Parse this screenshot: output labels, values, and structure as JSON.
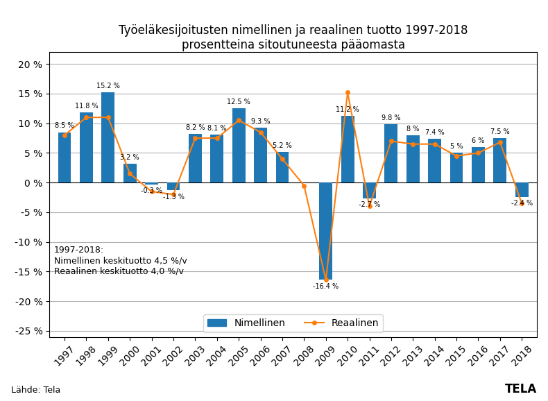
{
  "chart_data": {
    "type": "bar",
    "title": "Työeläkesijoitusten nimellinen ja reaalinen tuotto 1997-2018\nprosentteina sitoutuneesta pääomasta",
    "categories": [
      "1997",
      "1998",
      "1999",
      "2000",
      "2001",
      "2002",
      "2003",
      "2004",
      "2005",
      "2006",
      "2007",
      "2008",
      "2009",
      "2010",
      "2011",
      "2012",
      "2013",
      "2014",
      "2015",
      "2016",
      "2017",
      "2018"
    ],
    "series": [
      {
        "name": "Nimellinen",
        "type": "bar",
        "values": [
          8.5,
          11.8,
          15.2,
          3.2,
          -0.3,
          -1.3,
          8.2,
          8.1,
          12.5,
          9.3,
          5.2,
          0.0,
          -16.4,
          11.2,
          -2.7,
          9.8,
          8.0,
          7.4,
          5.0,
          6.0,
          7.5,
          -2.4
        ],
        "value_labels": [
          "8.5 %",
          "11.8 %",
          "15.2 %",
          "3.2 %",
          "-0.3 %",
          "-1.3 %",
          "8.2 %",
          "8.1 %",
          "12.5 %",
          "9.3 %",
          "5.2 %",
          null,
          "-16.4 %",
          "11.2 %",
          "-2.7 %",
          "9.8 %",
          "8 %",
          "7.4 %",
          "5 %",
          "6 %",
          "7.5 %",
          "-2.4 %"
        ]
      },
      {
        "name": "Reaalinen",
        "type": "line",
        "marker": "o",
        "values": [
          8.0,
          11.0,
          11.0,
          1.5,
          -1.5,
          -2.0,
          7.5,
          7.5,
          10.5,
          8.5,
          4.0,
          -0.5,
          -16.4,
          15.2,
          -4.0,
          7.0,
          6.5,
          6.5,
          4.5,
          5.0,
          6.8,
          -3.5
        ]
      }
    ],
    "ylim": [
      -26,
      22
    ],
    "yticks": [
      {
        "value": -25,
        "label": "-25 %"
      },
      {
        "value": -20,
        "label": "-20 %"
      },
      {
        "value": -15,
        "label": "-15 %"
      },
      {
        "value": -10,
        "label": "-10 %"
      },
      {
        "value": -5,
        "label": "-5 %"
      },
      {
        "value": 0,
        "label": "0 %"
      },
      {
        "value": 5,
        "label": "5 %"
      },
      {
        "value": 10,
        "label": "10 %"
      },
      {
        "value": 15,
        "label": "15 %"
      },
      {
        "value": 20,
        "label": "20 %"
      }
    ],
    "grid": true,
    "legend": "lower center",
    "data_labels": true,
    "annotations": [
      "1997-2018:\nNimellinen keskituotto 4,5 %/v\nReaalinen keskituotto 4,0 %/v",
      "Lähde: Tela",
      "TELA"
    ]
  }
}
